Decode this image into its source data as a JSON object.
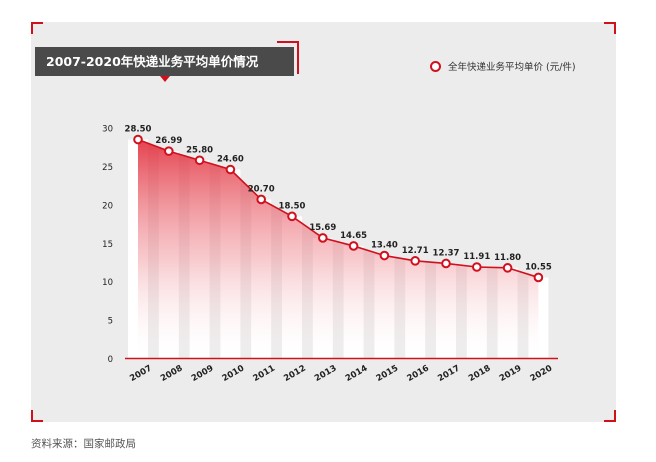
{
  "title": "2007-2020年快递业务平均单价情况",
  "legend": {
    "label": "全年快递业务平均单价 (元/件)"
  },
  "source": "资料来源：国家邮政局",
  "colors": {
    "accent": "#d1101e",
    "panel": "#ececec",
    "title_bg": "#4a4a4a",
    "line": "#d1101e"
  },
  "chart_data": {
    "type": "area",
    "title": "2007-2020年快递业务平均单价情况",
    "categories": [
      "2007",
      "2008",
      "2009",
      "2010",
      "2011",
      "2012",
      "2013",
      "2014",
      "2015",
      "2016",
      "2017",
      "2018",
      "2019",
      "2020"
    ],
    "series": [
      {
        "name": "全年快递业务平均单价 (元/件)",
        "values": [
          28.5,
          26.99,
          25.8,
          24.6,
          20.7,
          18.5,
          15.69,
          14.65,
          13.4,
          12.71,
          12.37,
          11.91,
          11.8,
          10.55
        ]
      }
    ],
    "value_labels": [
      "28.50",
      "26.99",
      "25.80",
      "24.60",
      "20.70",
      "18.50",
      "15.69",
      "14.65",
      "13.40",
      "12.71",
      "12.37",
      "11.91",
      "11.80",
      "10.55"
    ],
    "ylim": [
      0,
      30
    ],
    "yticks": [
      0,
      5,
      10,
      15,
      20,
      25,
      30
    ],
    "grid": false,
    "legend_position": "top-right"
  }
}
